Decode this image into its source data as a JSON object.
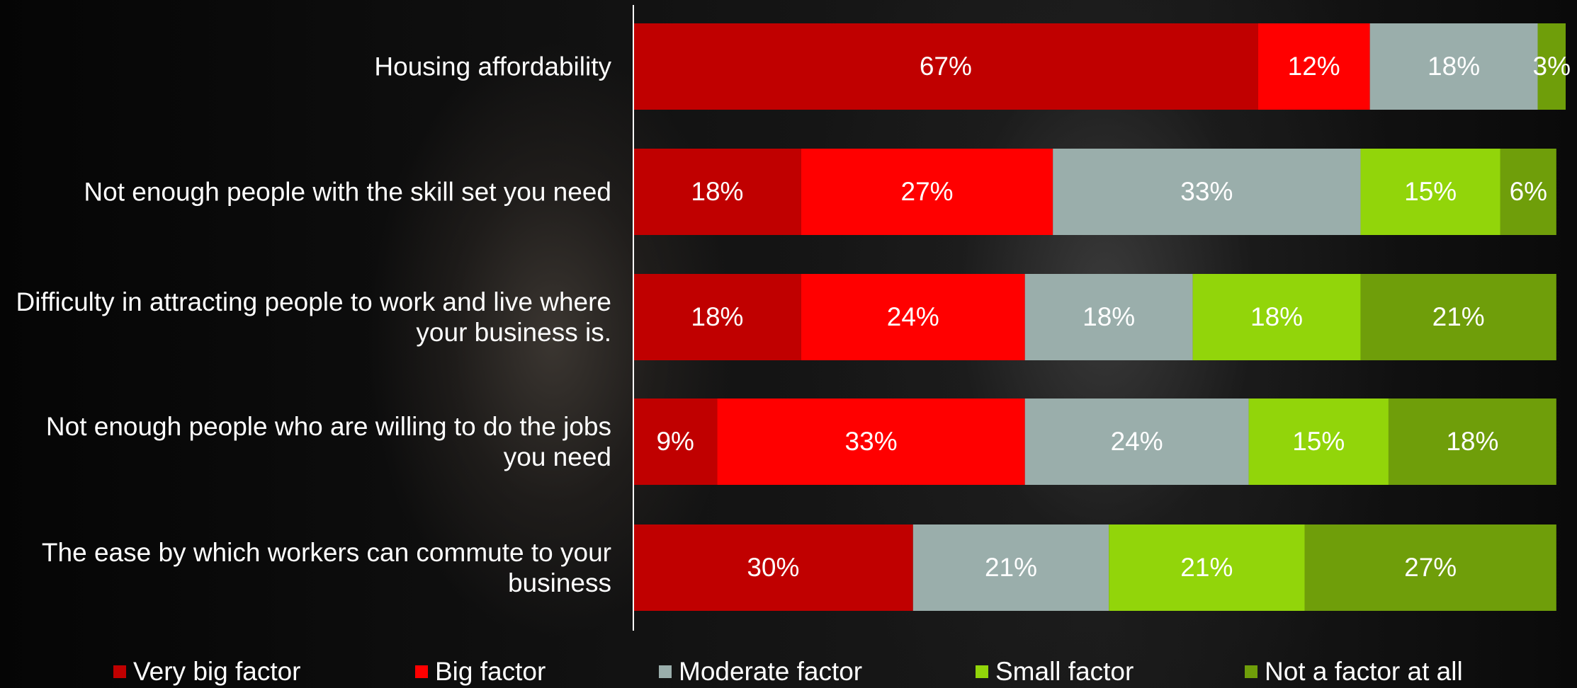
{
  "chart_data": {
    "type": "stacked-bar-horizontal",
    "categories": [
      "Housing affordability",
      "Not enough people with the skill set you need",
      "Difficulty in attracting people to work and live where your business is.",
      "Not enough people who are willing to do the jobs you need",
      "The ease by which workers can commute to your business"
    ],
    "xlim": [
      0,
      100
    ],
    "series": [
      {
        "name": "Very big factor",
        "color": "#c00000",
        "values": [
          67,
          18,
          18,
          9,
          30
        ],
        "value_labels": [
          "67%",
          "18%",
          "18%",
          "9%",
          "30%"
        ]
      },
      {
        "name": "Big factor",
        "color": "#ff0000",
        "values": [
          12,
          27,
          24,
          33,
          null
        ],
        "value_labels": [
          "12%",
          "27%",
          "24%",
          "33%",
          null
        ]
      },
      {
        "name": "Moderate factor",
        "color": "#9aaeab",
        "values": [
          18,
          33,
          18,
          24,
          21
        ],
        "value_labels": [
          "18%",
          "33%",
          "18%",
          "24%",
          "21%"
        ]
      },
      {
        "name": "Small factor",
        "color": "#92d50a",
        "values": [
          null,
          15,
          18,
          15,
          21
        ],
        "value_labels": [
          null,
          "15%",
          "18%",
          "15%",
          "21%"
        ]
      },
      {
        "name": "Not a factor at all",
        "color": "#6f9e0a",
        "values": [
          3,
          6,
          21,
          18,
          27
        ],
        "value_labels": [
          "3%",
          "6%",
          "21%",
          "18%",
          "27%"
        ]
      }
    ],
    "legend": "bottom"
  }
}
